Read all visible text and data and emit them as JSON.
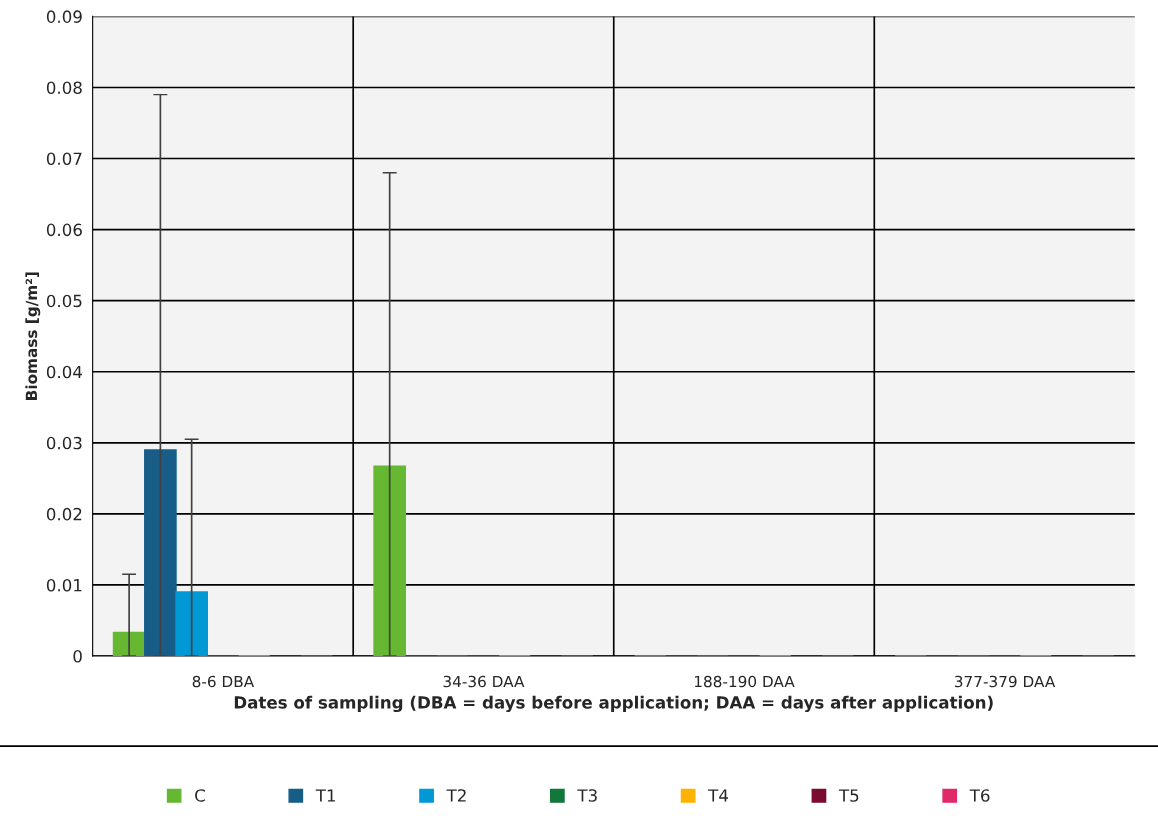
{
  "chart_data": {
    "type": "bar",
    "xlabel": "Dates of sampling (DBA = days before application; DAA = days after application)",
    "ylabel": "Biomass [g/m²]",
    "categories": [
      "8-6 DBA",
      "34-36 DAA",
      "188-190 DAA",
      "377-379 DAA"
    ],
    "series": [
      {
        "name": "C",
        "color": "#66b832",
        "values": [
          0.0033,
          0.0267,
          0,
          0
        ],
        "errors": [
          [
            0,
            0.0115
          ],
          [
            0,
            0.068
          ],
          null,
          null
        ]
      },
      {
        "name": "T1",
        "color": "#175d88",
        "values": [
          0.029,
          0,
          0,
          0
        ],
        "errors": [
          [
            0,
            0.079
          ],
          null,
          null,
          null
        ]
      },
      {
        "name": "T2",
        "color": "#0099d5",
        "values": [
          0.009,
          0,
          0,
          0
        ],
        "errors": [
          [
            0,
            0.0305
          ],
          null,
          null,
          null
        ]
      },
      {
        "name": "T3",
        "color": "#12773a",
        "values": [
          0,
          0,
          0,
          0
        ]
      },
      {
        "name": "T4",
        "color": "#ffb200",
        "values": [
          0,
          0,
          0,
          0
        ]
      },
      {
        "name": "T5",
        "color": "#7a0c30",
        "values": [
          0,
          0,
          0,
          0
        ]
      },
      {
        "name": "T6",
        "color": "#e0286a",
        "values": [
          0,
          0,
          0,
          0
        ]
      }
    ],
    "ylim": [
      0,
      0.09
    ],
    "yticks": [
      {
        "value": 0,
        "label": "0"
      },
      0.01,
      0.02,
      0.03,
      0.04,
      0.05,
      0.06,
      0.07,
      0.08,
      0.09
    ],
    "grid": true,
    "legend": "bottom"
  }
}
